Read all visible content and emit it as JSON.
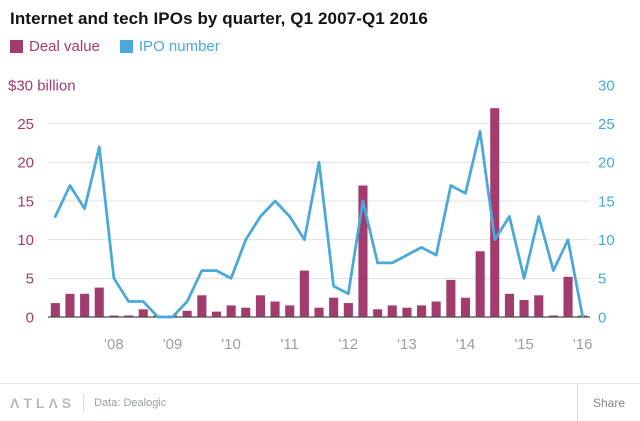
{
  "header": {
    "title": "Internet and tech IPOs by quarter, Q1 2007-Q1 2016"
  },
  "legend": [
    {
      "label": "Deal value",
      "color": "#a23b6e"
    },
    {
      "label": "IPO number",
      "color": "#4aa8db"
    }
  ],
  "chart_data": {
    "type": "bar+line",
    "title": "Internet and tech IPOs by quarter, Q1 2007-Q1 2016",
    "categories": [
      "Q1 2007",
      "Q2 2007",
      "Q3 2007",
      "Q4 2007",
      "Q1 2008",
      "Q2 2008",
      "Q3 2008",
      "Q4 2008",
      "Q1 2009",
      "Q2 2009",
      "Q3 2009",
      "Q4 2009",
      "Q1 2010",
      "Q2 2010",
      "Q3 2010",
      "Q4 2010",
      "Q1 2011",
      "Q2 2011",
      "Q3 2011",
      "Q4 2011",
      "Q1 2012",
      "Q2 2012",
      "Q3 2012",
      "Q4 2012",
      "Q1 2013",
      "Q2 2013",
      "Q3 2013",
      "Q4 2013",
      "Q1 2014",
      "Q2 2014",
      "Q3 2014",
      "Q4 2014",
      "Q1 2015",
      "Q2 2015",
      "Q3 2015",
      "Q4 2015",
      "Q1 2016"
    ],
    "series": [
      {
        "name": "Deal value",
        "type": "bar",
        "unit": "$ billion",
        "color": "#a23b6e",
        "values": [
          1.8,
          3.0,
          3.0,
          3.8,
          0.2,
          0.1,
          1.0,
          0.1,
          0.1,
          0.8,
          2.8,
          0.7,
          1.5,
          1.2,
          2.8,
          2.0,
          1.5,
          6.0,
          1.2,
          2.5,
          1.8,
          17.0,
          1.0,
          1.5,
          1.2,
          1.5,
          2.0,
          4.8,
          2.5,
          8.5,
          27.0,
          3.0,
          2.2,
          2.8,
          0.2,
          5.2,
          0.1
        ]
      },
      {
        "name": "IPO number",
        "type": "line",
        "color": "#4aa8db",
        "values": [
          13,
          17,
          14,
          22,
          5,
          2,
          2,
          0,
          0,
          2,
          6,
          6,
          5,
          10,
          13,
          15,
          13,
          10,
          20,
          4,
          3,
          15,
          7,
          7,
          8,
          9,
          8,
          17,
          16,
          24,
          10,
          13,
          5,
          13,
          6,
          10,
          0
        ]
      }
    ],
    "left_axis": {
      "unit_label": "$30 billion",
      "ticks": [
        0,
        5,
        10,
        15,
        20,
        25,
        30
      ],
      "max": 30
    },
    "right_axis": {
      "ticks": [
        0,
        5,
        10,
        15,
        20,
        25,
        30
      ],
      "max": 30
    },
    "x_ticks": [
      {
        "index": 4,
        "label": "'08"
      },
      {
        "index": 8,
        "label": "'09"
      },
      {
        "index": 12,
        "label": "'10"
      },
      {
        "index": 16,
        "label": "'11"
      },
      {
        "index": 20,
        "label": "'12"
      },
      {
        "index": 24,
        "label": "'13"
      },
      {
        "index": 28,
        "label": "'14"
      },
      {
        "index": 32,
        "label": "'15"
      },
      {
        "index": 36,
        "label": "'16"
      }
    ],
    "grid": true,
    "legend_position": "top-left",
    "colors": {
      "bar": "#a23b6e",
      "line": "#4aa8db",
      "grid": "#e0e0e0",
      "zero_line": "#4a4a4a",
      "axis_text": "#9aa0a4"
    }
  },
  "footer": {
    "logo": "ΛTLΛS",
    "source": "Data: Dealogic",
    "share_label": "Share"
  }
}
